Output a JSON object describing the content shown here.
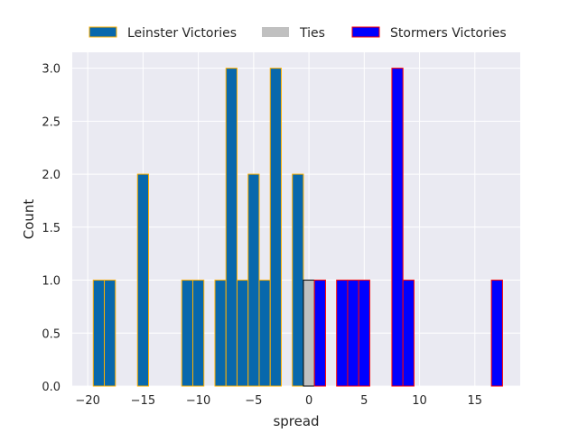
{
  "chart_data": {
    "type": "bar",
    "title": "",
    "xlabel": "spread",
    "ylabel": "Count",
    "xlim": [
      -21.4,
      19.1
    ],
    "ylim": [
      0,
      3.15
    ],
    "bin_width": 1,
    "grid": true,
    "legend_placement": "top-center",
    "xticks": [
      -20,
      -15,
      -10,
      -5,
      0,
      5,
      10,
      15
    ],
    "xtick_labels": [
      "−20",
      "−15",
      "−10",
      "−5",
      "0",
      "5",
      "10",
      "15"
    ],
    "yticks": [
      0,
      0.5,
      1,
      1.5,
      2,
      2.5,
      3
    ],
    "ytick_labels": [
      "0.0",
      "0.5",
      "1.0",
      "1.5",
      "2.0",
      "2.5",
      "3.0"
    ],
    "series": [
      {
        "name": "Leinster Victories",
        "fill": "#0868ac",
        "edge": "#ffb000",
        "x": [
          -19,
          -18,
          -15,
          -11,
          -10,
          -8,
          -7,
          -6,
          -5,
          -4,
          -3,
          -1
        ],
        "values": [
          1,
          1,
          2,
          1,
          1,
          1,
          3,
          1,
          2,
          1,
          3,
          2
        ]
      },
      {
        "name": "Ties",
        "fill": "#c0c0c0",
        "edge": "#000000",
        "x": [
          0
        ],
        "values": [
          1
        ]
      },
      {
        "name": "Stormers Victories",
        "fill": "#0000ff",
        "edge": "#ff0000",
        "x": [
          1,
          3,
          4,
          5,
          8,
          9,
          17
        ],
        "values": [
          1,
          1,
          1,
          1,
          3,
          1,
          1
        ]
      }
    ]
  }
}
